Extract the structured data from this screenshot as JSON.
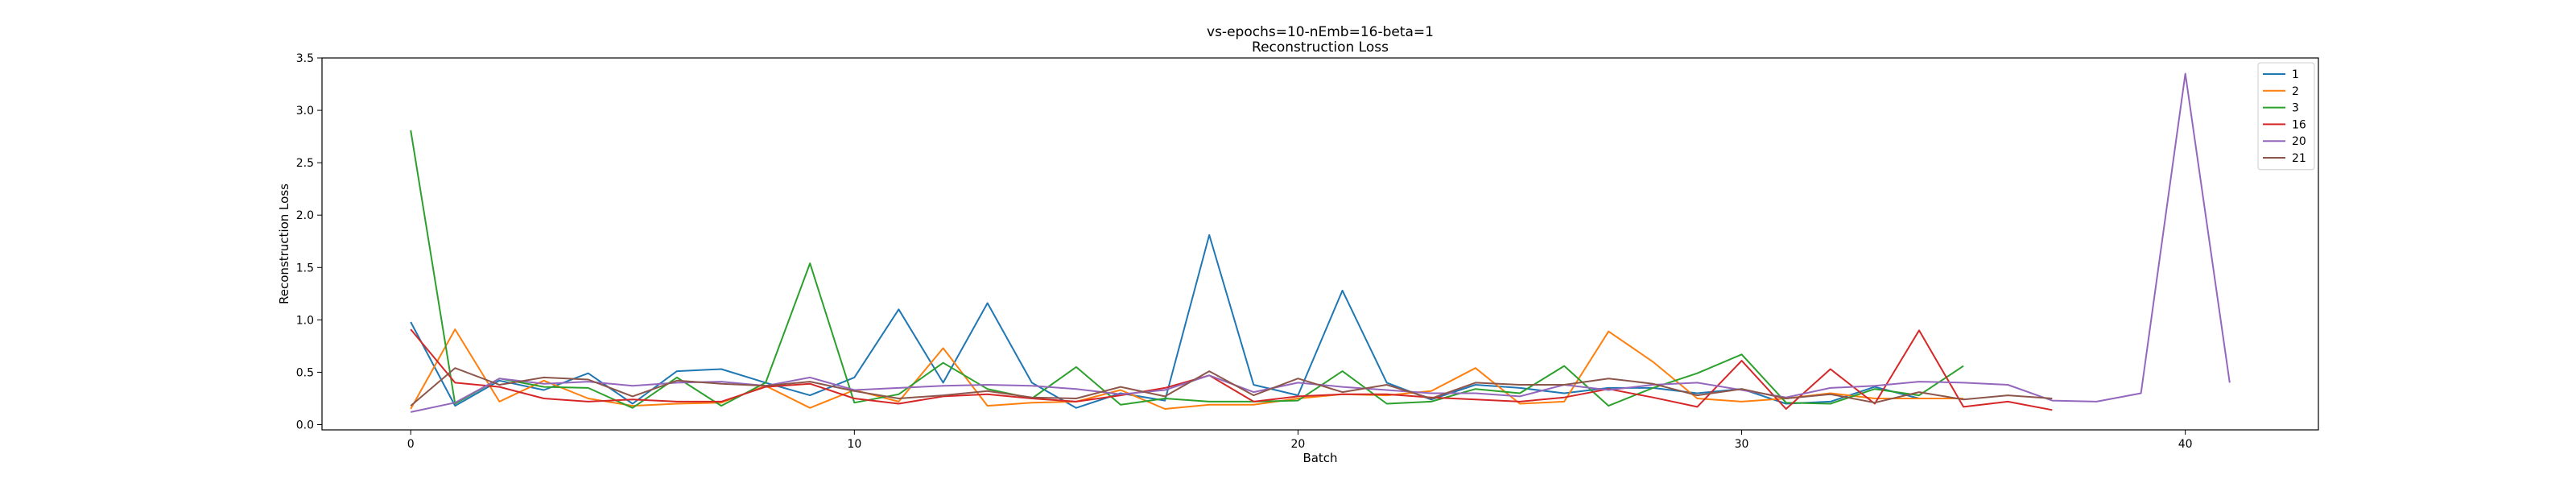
{
  "chart_data": {
    "type": "line",
    "title": "vs-epochs=10-nEmb=16-beta=1",
    "subtitle": "Reconstruction Loss",
    "xlabel": "Batch",
    "ylabel": "Reconstruction Loss",
    "xlim": [
      -2,
      43
    ],
    "ylim": [
      -0.05,
      3.5
    ],
    "xticks": [
      0,
      10,
      20,
      30,
      40
    ],
    "yticks": [
      0.0,
      0.5,
      1.0,
      1.5,
      2.0,
      2.5,
      3.0,
      3.5
    ],
    "grid": false,
    "legend_position": "top-right",
    "series": [
      {
        "name": "1",
        "color": "#1f77b4",
        "values": [
          0.98,
          0.18,
          0.42,
          0.33,
          0.49,
          0.2,
          0.51,
          0.53,
          0.4,
          0.28,
          0.45,
          1.1,
          0.4,
          1.16,
          0.4,
          0.16,
          0.3,
          0.23,
          1.81,
          0.38,
          0.28,
          1.28,
          0.4,
          0.24,
          0.38,
          0.35,
          0.3,
          0.35,
          0.35,
          0.3,
          0.34,
          0.2,
          0.22,
          0.36,
          0.25
        ]
      },
      {
        "name": "2",
        "color": "#ff7f0e",
        "values": [
          0.15,
          0.91,
          0.22,
          0.42,
          0.25,
          0.18,
          0.2,
          0.21,
          0.37,
          0.16,
          0.33,
          0.22,
          0.73,
          0.18,
          0.21,
          0.22,
          0.33,
          0.15,
          0.19,
          0.19,
          0.25,
          0.29,
          0.28,
          0.32,
          0.54,
          0.2,
          0.22,
          0.89,
          0.6,
          0.25,
          0.22,
          0.25,
          0.3,
          0.25,
          0.25,
          0.25
        ]
      },
      {
        "name": "3",
        "color": "#2ca02c",
        "values": [
          2.81,
          0.2,
          0.44,
          0.36,
          0.35,
          0.16,
          0.45,
          0.18,
          0.4,
          1.54,
          0.21,
          0.29,
          0.59,
          0.34,
          0.25,
          0.55,
          0.19,
          0.25,
          0.22,
          0.22,
          0.23,
          0.51,
          0.2,
          0.22,
          0.34,
          0.3,
          0.56,
          0.18,
          0.35,
          0.49,
          0.67,
          0.21,
          0.2,
          0.34,
          0.28,
          0.56
        ]
      },
      {
        "name": "16",
        "color": "#d62728",
        "values": [
          0.91,
          0.4,
          0.36,
          0.25,
          0.22,
          0.24,
          0.22,
          0.22,
          0.36,
          0.39,
          0.25,
          0.2,
          0.27,
          0.29,
          0.25,
          0.22,
          0.28,
          0.35,
          0.47,
          0.22,
          0.27,
          0.29,
          0.29,
          0.26,
          0.24,
          0.22,
          0.26,
          0.34,
          0.26,
          0.17,
          0.61,
          0.15,
          0.53,
          0.2,
          0.9,
          0.17,
          0.22,
          0.14
        ]
      },
      {
        "name": "20",
        "color": "#9467bd",
        "values": [
          0.12,
          0.21,
          0.44,
          0.39,
          0.41,
          0.37,
          0.4,
          0.41,
          0.37,
          0.45,
          0.33,
          0.35,
          0.37,
          0.38,
          0.37,
          0.34,
          0.29,
          0.33,
          0.47,
          0.31,
          0.4,
          0.36,
          0.33,
          0.3,
          0.3,
          0.27,
          0.38,
          0.33,
          0.38,
          0.4,
          0.33,
          0.26,
          0.35,
          0.37,
          0.41,
          0.4,
          0.38,
          0.23,
          0.22,
          0.3,
          3.35,
          0.4
        ]
      },
      {
        "name": "21",
        "color": "#8c564b",
        "values": [
          0.18,
          0.54,
          0.38,
          0.45,
          0.43,
          0.27,
          0.42,
          0.39,
          0.37,
          0.41,
          0.32,
          0.25,
          0.28,
          0.32,
          0.26,
          0.25,
          0.36,
          0.27,
          0.51,
          0.28,
          0.44,
          0.31,
          0.38,
          0.25,
          0.4,
          0.38,
          0.38,
          0.44,
          0.39,
          0.28,
          0.34,
          0.25,
          0.29,
          0.21,
          0.31,
          0.24,
          0.28,
          0.25
        ]
      }
    ]
  }
}
